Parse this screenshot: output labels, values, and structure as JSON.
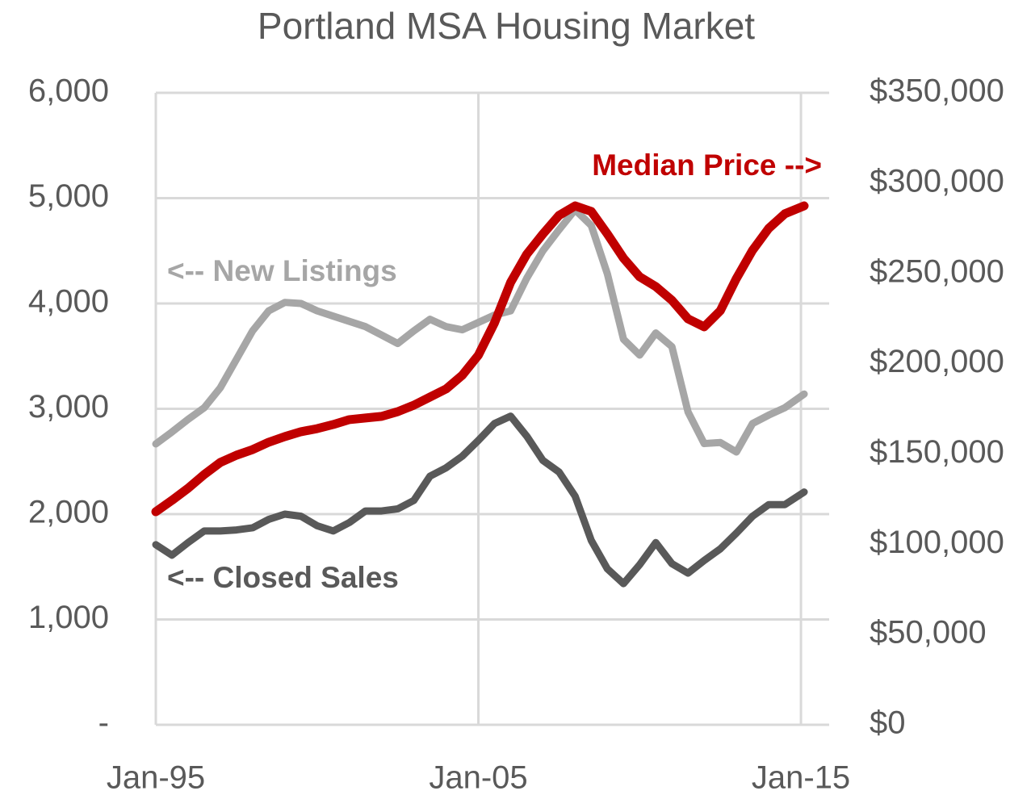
{
  "chart_data": {
    "type": "line",
    "title": "Portland MSA Housing Market",
    "x": [
      1995,
      1995.5,
      1996,
      1996.5,
      1997,
      1997.5,
      1998,
      1998.5,
      1999,
      1999.5,
      2000,
      2000.5,
      2001,
      2001.5,
      2002,
      2002.5,
      2003,
      2003.5,
      2004,
      2004.5,
      2005,
      2005.5,
      2006,
      2006.5,
      2007,
      2007.5,
      2008,
      2008.5,
      2009,
      2009.5,
      2010,
      2010.5,
      2011,
      2011.5,
      2012,
      2012.5,
      2013,
      2013.5,
      2014,
      2014.5,
      2015.1
    ],
    "xlim": [
      1995,
      2015.875
    ],
    "xticks": [
      {
        "value": 1995,
        "label": "Jan-95"
      },
      {
        "value": 2005,
        "label": "Jan-05"
      },
      {
        "value": 2015,
        "label": "Jan-15"
      }
    ],
    "ylim": [
      0,
      6000
    ],
    "yticks": [
      {
        "value": 0,
        "label": "-"
      },
      {
        "value": 1000,
        "label": "1,000"
      },
      {
        "value": 2000,
        "label": "2,000"
      },
      {
        "value": 3000,
        "label": "3,000"
      },
      {
        "value": 4000,
        "label": "4,000"
      },
      {
        "value": 5000,
        "label": "5,000"
      },
      {
        "value": 6000,
        "label": "6,000"
      }
    ],
    "y2lim": [
      0,
      350000
    ],
    "y2ticks": [
      {
        "value": 0,
        "label": "$0"
      },
      {
        "value": 50000,
        "label": "$50,000"
      },
      {
        "value": 100000,
        "label": "$100,000"
      },
      {
        "value": 150000,
        "label": "$150,000"
      },
      {
        "value": 200000,
        "label": "$200,000"
      },
      {
        "value": 250000,
        "label": "$250,000"
      },
      {
        "value": 300000,
        "label": "$300,000"
      },
      {
        "value": 350000,
        "label": "$350,000"
      }
    ],
    "grid": true,
    "series": [
      {
        "color": "#a6a6a6",
        "values": [
          2667,
          2780,
          2900,
          3010,
          3200,
          3470,
          3740,
          3930,
          4010,
          4000,
          3930,
          3880,
          3830,
          3780,
          3700,
          3620,
          3740,
          3850,
          3780,
          3750,
          3820,
          3890,
          3930,
          4240,
          4500,
          4700,
          4890,
          4740,
          4280,
          3660,
          3510,
          3720,
          3590,
          2970,
          2670,
          2680,
          2590,
          2860,
          2940,
          3010,
          3140
        ]
      },
      {
        "color": "#595959",
        "values": [
          1710,
          1610,
          1730,
          1840,
          1840,
          1850,
          1870,
          1950,
          2000,
          1980,
          1890,
          1840,
          1920,
          2030,
          2030,
          2050,
          2130,
          2360,
          2440,
          2550,
          2700,
          2860,
          2930,
          2740,
          2510,
          2400,
          2170,
          1750,
          1480,
          1340,
          1520,
          1730,
          1530,
          1440,
          1560,
          1670,
          1820,
          1980,
          2090,
          2090,
          2210
        ]
      },
      {
        "color": "#c00000",
        "axis": "y2",
        "values": [
          118000,
          124300,
          131000,
          138600,
          145300,
          149300,
          152400,
          156500,
          159600,
          162300,
          164000,
          166300,
          169000,
          169900,
          170800,
          173400,
          177000,
          181500,
          186000,
          193600,
          204700,
          222600,
          245000,
          260600,
          271800,
          282100,
          287400,
          284300,
          271800,
          258400,
          248100,
          242700,
          235100,
          224800,
          220400,
          229300,
          247200,
          262800,
          274900,
          283000,
          287400
        ]
      }
    ],
    "annotations": [
      {
        "text": "<-- New Listings",
        "color": "#a6a6a6"
      },
      {
        "text": "<-- Closed Sales",
        "color": "#595959"
      },
      {
        "text": "Median Price -->",
        "color": "#c00000"
      }
    ]
  }
}
